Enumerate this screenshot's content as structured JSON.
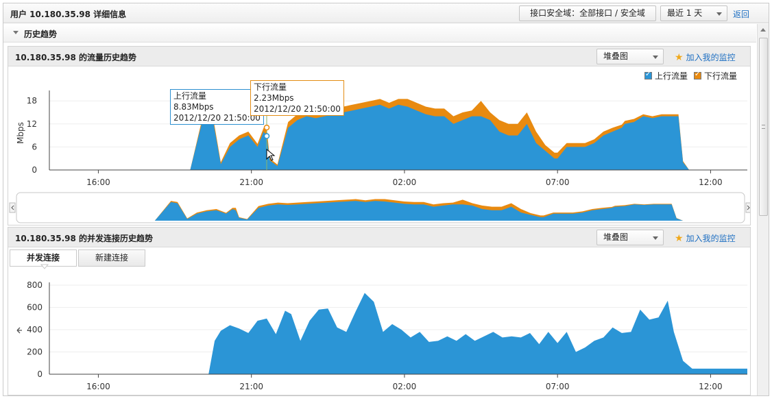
{
  "page": {
    "title": "用户 10.180.35.98 详细信息",
    "zone_button": "接口安全域：全部接口 / 安全域",
    "range_select": "最近 1 天",
    "back_link": "返回"
  },
  "section": {
    "title": "历史趋势"
  },
  "traffic_panel": {
    "title": "10.180.35.98 的流量历史趋势",
    "chart_type": "堆叠图",
    "monitor_link": "加入我的监控",
    "legend": [
      {
        "label": "上行流量",
        "color": "#2b95d6"
      },
      {
        "label": "下行流量",
        "color": "#e88a10"
      }
    ],
    "tooltip_up": {
      "title": "上行流量",
      "value": "8.83Mbps",
      "time": "2012/12/20 21:50:00"
    },
    "tooltip_down": {
      "title": "下行流量",
      "value": "2.23Mbps",
      "time": "2012/12/20 21:50:00"
    }
  },
  "conn_panel": {
    "title": "10.180.35.98 的并发连接历史趋势",
    "chart_type": "堆叠图",
    "monitor_link": "加入我的监控",
    "tabs": [
      "并发连接",
      "新建连接"
    ]
  },
  "icons": [
    "collapse-arrow-icon",
    "star-icon",
    "dropdown-caret-icon",
    "scroll-left-icon",
    "scroll-right-icon",
    "mouse-cursor-icon",
    "left-arrow-icon"
  ],
  "chart_data": [
    {
      "type": "area",
      "stacked": true,
      "ylabel": "Mbps",
      "yticks": [
        0,
        6,
        12,
        18
      ],
      "ylim": [
        0,
        20
      ],
      "xticks": [
        "16:00",
        "21:00",
        "02:00",
        "07:00",
        "12:00"
      ],
      "x_hours": [
        14.9,
        15.5,
        16,
        17,
        18,
        19,
        19.5,
        19.7,
        20.0,
        20.3,
        20.6,
        20.9,
        21.2,
        21.4,
        21.5,
        21.6,
        21.85,
        22.2,
        22.5,
        22.8,
        23.1,
        23.4,
        23.7,
        24.0,
        24.3,
        24.6,
        24.9,
        25.2,
        25.5,
        25.8,
        26.1,
        26.4,
        26.7,
        27.0,
        27.3,
        27.6,
        27.9,
        28.2,
        28.5,
        28.8,
        29.1,
        29.4,
        29.7,
        30.0,
        30.3,
        30.6,
        30.9,
        31.0,
        31.3,
        31.6,
        31.9,
        32.2,
        32.5,
        32.8,
        33.1,
        33.2,
        33.5,
        33.8,
        34.1,
        34.4,
        34.8,
        34.95,
        35.1,
        35.3
      ],
      "series": [
        {
          "name": "上行流量",
          "values": [
            0,
            0,
            0,
            0,
            0,
            0,
            16,
            15,
            1.5,
            6,
            8,
            9,
            6,
            10,
            8.83,
            2.5,
            1,
            11,
            13,
            14,
            13.5,
            14,
            14.5,
            15,
            15.5,
            16,
            16.5,
            17,
            16,
            17,
            16.5,
            15.5,
            14.5,
            14,
            14,
            12,
            13,
            14,
            14,
            13,
            10,
            9,
            9,
            12,
            7,
            5,
            3,
            3,
            6,
            6,
            6,
            7,
            9,
            10,
            11,
            12,
            12.5,
            14,
            13.5,
            14,
            14,
            14,
            2,
            0
          ]
        },
        {
          "name": "下行流量",
          "values": [
            0,
            0,
            0,
            0,
            0,
            0,
            1,
            1,
            0.5,
            1,
            1,
            1,
            0.8,
            1,
            2.23,
            0.5,
            0.4,
            1.5,
            1.5,
            1.5,
            1.5,
            1.5,
            1.5,
            1.5,
            1.5,
            1.5,
            1.5,
            1.5,
            1.5,
            1.5,
            2,
            2,
            2,
            2,
            2,
            2,
            2,
            1.5,
            4,
            2,
            3,
            3,
            3,
            3,
            3,
            1.5,
            1.5,
            1.5,
            1,
            1,
            1,
            1,
            1,
            1,
            0.8,
            0.8,
            0.8,
            0.5,
            0.5,
            0.5,
            0.5,
            0.5,
            0.3,
            0
          ]
        }
      ]
    },
    {
      "type": "area",
      "yticks": [
        0,
        200,
        400,
        600,
        800
      ],
      "ylim": [
        0,
        800
      ],
      "xticks": [
        "16:00",
        "21:00",
        "02:00",
        "07:00",
        "12:00"
      ],
      "x_hours": [
        14.9,
        16,
        17,
        18,
        19,
        19.6,
        19.8,
        20.0,
        20.3,
        20.6,
        20.9,
        21.2,
        21.5,
        21.8,
        22.1,
        22.3,
        22.6,
        22.9,
        23.2,
        23.5,
        23.8,
        24.1,
        24.4,
        24.7,
        25.0,
        25.3,
        25.6,
        25.9,
        26.2,
        26.5,
        26.8,
        27.1,
        27.4,
        27.7,
        28.0,
        28.3,
        28.6,
        28.9,
        29.2,
        29.5,
        29.8,
        30.1,
        30.4,
        30.7,
        31.0,
        31.3,
        31.6,
        31.9,
        32.2,
        32.5,
        32.8,
        33.1,
        33.4,
        33.7,
        34.0,
        34.3,
        34.6,
        34.8,
        35.1,
        35.4,
        36,
        37,
        37.2
      ],
      "series": [
        {
          "values": [
            0,
            0,
            0,
            0,
            0,
            0,
            300,
            390,
            440,
            410,
            370,
            480,
            500,
            360,
            570,
            540,
            300,
            480,
            580,
            590,
            420,
            380,
            560,
            730,
            650,
            380,
            450,
            400,
            330,
            380,
            290,
            300,
            340,
            300,
            360,
            300,
            340,
            380,
            330,
            340,
            330,
            370,
            270,
            380,
            280,
            380,
            200,
            240,
            300,
            330,
            420,
            370,
            380,
            580,
            490,
            510,
            660,
            380,
            120,
            50,
            50,
            50,
            50
          ]
        }
      ]
    }
  ]
}
